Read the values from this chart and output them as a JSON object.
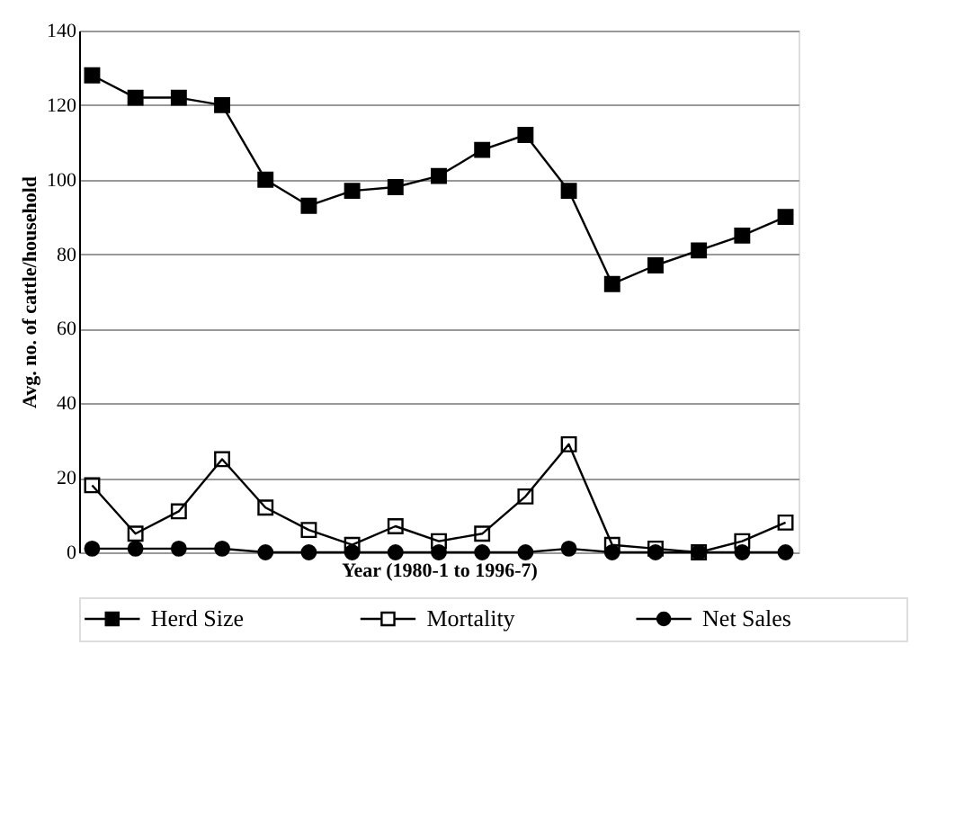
{
  "chart_data": {
    "type": "line",
    "xlabel": "Year (1980-1 to 1996-7)",
    "ylabel": "Avg. no. of cattle/household",
    "categories": [
      null,
      null,
      null,
      null,
      null,
      null,
      null,
      null,
      null,
      null,
      null,
      null,
      null,
      null,
      null,
      null,
      null
    ],
    "series": [
      {
        "name": "Herd Size",
        "color": "#000000",
        "marker": "square",
        "values": [
          128,
          122,
          122,
          120,
          100,
          93,
          97,
          98,
          101,
          108,
          112,
          97,
          72,
          77,
          81,
          85,
          90
        ]
      },
      {
        "name": "Mortality",
        "color": "#000000",
        "marker": "square",
        "values": [
          18,
          5,
          11,
          25,
          12,
          6,
          2,
          7,
          3,
          5,
          15,
          29,
          2,
          1,
          0,
          3,
          8
        ]
      },
      {
        "name": "Net Sales",
        "color": "#000000",
        "marker": "circle",
        "values": [
          1,
          1,
          1,
          1,
          0,
          0,
          0,
          0,
          0,
          0,
          0,
          1,
          0,
          0,
          0,
          0,
          0
        ]
      }
    ],
    "ylim": [
      0,
      140
    ],
    "yticks": [
      0,
      20,
      40,
      60,
      80,
      100,
      120,
      140
    ],
    "grid": "y",
    "legend": "bottom",
    "line_style": "solid",
    "tick_labels": "y"
  }
}
